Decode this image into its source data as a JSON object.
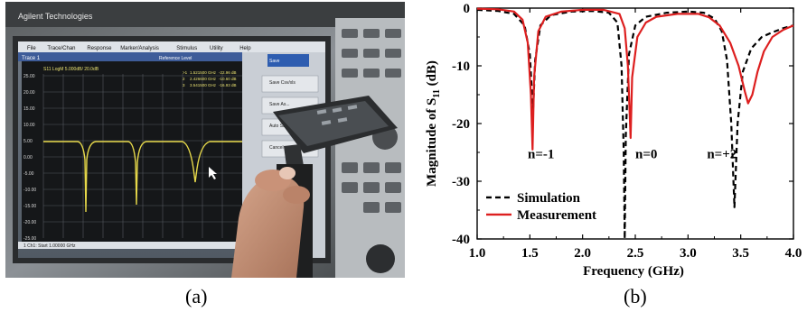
{
  "captions": {
    "a": "(a)",
    "b": "(b)"
  },
  "photo": {
    "brand": "Agilent Technologies",
    "menu": [
      "File",
      "Trace/Chan",
      "Response",
      "Marker/Analysis",
      "Stimulus",
      "Utility",
      "Help"
    ],
    "trace_label": "Trace 1",
    "trace_header": "S11 LogM 5.000dB/ 20.0dB",
    "reference_label": "Reference Level",
    "y_ticks": [
      "25.00",
      "20.00",
      "15.00",
      "10.00",
      "5.00",
      "0.00",
      "-5.00",
      "-10.00",
      "-15.00",
      "-20.00",
      "-25.00"
    ],
    "markers": [
      {
        "num": ">1",
        "freq": "1.521500 GHz",
        "val": "-22.96 dB"
      },
      {
        "num": "2",
        "freq": "2.426600 GHz",
        "val": "-10.60 dB"
      },
      {
        "num": "3",
        "freq": "3.541500 GHz",
        "val": "-16.93 dB"
      }
    ],
    "softkeys": [
      "Save",
      "Save Csv/xls",
      "Save As...",
      "Auto Save",
      "Cancel"
    ],
    "status": "1 Ch1: Start 1.00000 GHz"
  },
  "chart_data": {
    "type": "line",
    "xlabel": "Frequency (GHz)",
    "ylabel_main": "Magnitude of S",
    "ylabel_sub": "11",
    "ylabel_unit": " (dB)",
    "xlim": [
      1.0,
      4.0
    ],
    "ylim": [
      -40,
      0
    ],
    "x_ticks": [
      "1.0",
      "1.5",
      "2.0",
      "2.5",
      "3.0",
      "3.5",
      "4.0"
    ],
    "y_ticks": [
      "0",
      "-10",
      "-20",
      "-30",
      "-40"
    ],
    "grid": false,
    "legend_position": "lower-left",
    "annotations": [
      {
        "text": "n=-1",
        "x": 1.48,
        "y": -26
      },
      {
        "text": "n=0",
        "x": 2.5,
        "y": -26
      },
      {
        "text": "n=+2",
        "x": 3.18,
        "y": -26
      }
    ],
    "series": [
      {
        "name": "Simulation",
        "style": "dashed",
        "color": "#000000",
        "points": [
          [
            1.0,
            -0.3
          ],
          [
            1.2,
            -0.5
          ],
          [
            1.35,
            -1.0
          ],
          [
            1.45,
            -3
          ],
          [
            1.5,
            -8
          ],
          [
            1.53,
            -18
          ],
          [
            1.55,
            -9
          ],
          [
            1.6,
            -3
          ],
          [
            1.7,
            -1.2
          ],
          [
            1.9,
            -0.6
          ],
          [
            2.1,
            -0.5
          ],
          [
            2.25,
            -0.8
          ],
          [
            2.33,
            -2.5
          ],
          [
            2.37,
            -10
          ],
          [
            2.39,
            -25
          ],
          [
            2.4,
            -40
          ],
          [
            2.41,
            -22
          ],
          [
            2.44,
            -8
          ],
          [
            2.5,
            -3
          ],
          [
            2.6,
            -1.5
          ],
          [
            2.8,
            -0.8
          ],
          [
            3.0,
            -0.6
          ],
          [
            3.15,
            -0.8
          ],
          [
            3.25,
            -1.8
          ],
          [
            3.32,
            -4
          ],
          [
            3.37,
            -9
          ],
          [
            3.41,
            -20
          ],
          [
            3.44,
            -34.5
          ],
          [
            3.47,
            -20
          ],
          [
            3.52,
            -11
          ],
          [
            3.6,
            -7
          ],
          [
            3.7,
            -5
          ],
          [
            3.8,
            -4.2
          ],
          [
            3.9,
            -3.5
          ],
          [
            4.0,
            -3.0
          ]
        ]
      },
      {
        "name": "Measurement",
        "style": "solid",
        "color": "#dd1f1f",
        "points": [
          [
            1.0,
            -0.1
          ],
          [
            1.2,
            -0.2
          ],
          [
            1.35,
            -0.6
          ],
          [
            1.43,
            -2
          ],
          [
            1.48,
            -6
          ],
          [
            1.51,
            -15
          ],
          [
            1.525,
            -24.5
          ],
          [
            1.54,
            -12
          ],
          [
            1.58,
            -4
          ],
          [
            1.65,
            -1.5
          ],
          [
            1.8,
            -0.6
          ],
          [
            2.0,
            -0.3
          ],
          [
            2.2,
            -0.3
          ],
          [
            2.35,
            -1
          ],
          [
            2.4,
            -3.5
          ],
          [
            2.43,
            -10
          ],
          [
            2.455,
            -22.5
          ],
          [
            2.47,
            -12
          ],
          [
            2.52,
            -5
          ],
          [
            2.6,
            -2.5
          ],
          [
            2.7,
            -1.5
          ],
          [
            2.9,
            -1.0
          ],
          [
            3.1,
            -1.0
          ],
          [
            3.2,
            -1.6
          ],
          [
            3.3,
            -3
          ],
          [
            3.4,
            -6
          ],
          [
            3.48,
            -10
          ],
          [
            3.54,
            -14.5
          ],
          [
            3.57,
            -16.5
          ],
          [
            3.61,
            -15
          ],
          [
            3.66,
            -11
          ],
          [
            3.72,
            -7.5
          ],
          [
            3.8,
            -5
          ],
          [
            3.9,
            -3.8
          ],
          [
            4.0,
            -3.0
          ]
        ]
      }
    ]
  }
}
